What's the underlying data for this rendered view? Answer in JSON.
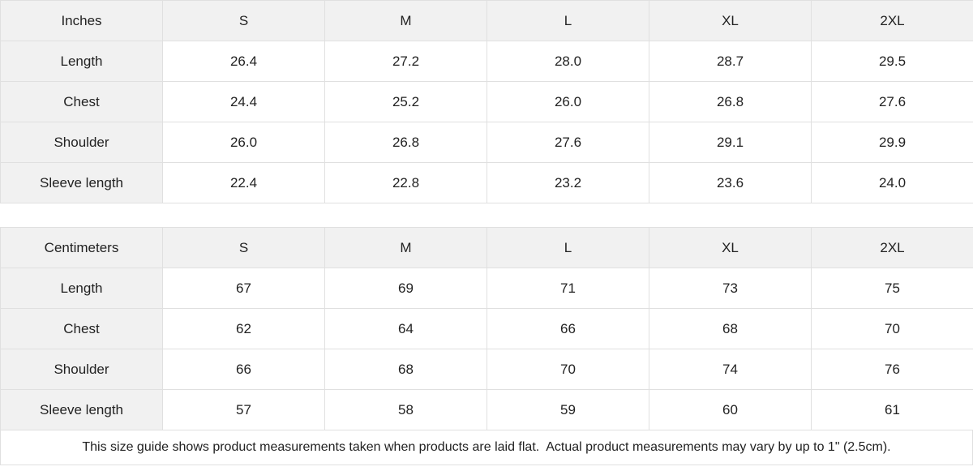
{
  "colors": {
    "header_cell_bg": "#f1f1f1",
    "cell_bg": "#ffffff",
    "border": "#e0e0e0",
    "text": "#222222"
  },
  "tables": [
    {
      "unit_header": "Inches",
      "size_headers": [
        "S",
        "M",
        "L",
        "XL",
        "2XL"
      ],
      "rows": [
        {
          "label": "Length",
          "values": [
            "26.4",
            "27.2",
            "28.0",
            "28.7",
            "29.5"
          ]
        },
        {
          "label": "Chest",
          "values": [
            "24.4",
            "25.2",
            "26.0",
            "26.8",
            "27.6"
          ]
        },
        {
          "label": "Shoulder",
          "values": [
            "26.0",
            "26.8",
            "27.6",
            "29.1",
            "29.9"
          ]
        },
        {
          "label": "Sleeve length",
          "values": [
            "22.4",
            "22.8",
            "23.2",
            "23.6",
            "24.0"
          ]
        }
      ]
    },
    {
      "unit_header": "Centimeters",
      "size_headers": [
        "S",
        "M",
        "L",
        "XL",
        "2XL"
      ],
      "rows": [
        {
          "label": "Length",
          "values": [
            "67",
            "69",
            "71",
            "73",
            "75"
          ]
        },
        {
          "label": "Chest",
          "values": [
            "62",
            "64",
            "66",
            "68",
            "70"
          ]
        },
        {
          "label": "Shoulder",
          "values": [
            "66",
            "68",
            "70",
            "74",
            "76"
          ]
        },
        {
          "label": "Sleeve length",
          "values": [
            "57",
            "58",
            "59",
            "60",
            "61"
          ]
        }
      ]
    }
  ],
  "footer_note": "This size guide shows product measurements taken when products are laid flat.  Actual product measurements may vary by up to 1\" (2.5cm)."
}
